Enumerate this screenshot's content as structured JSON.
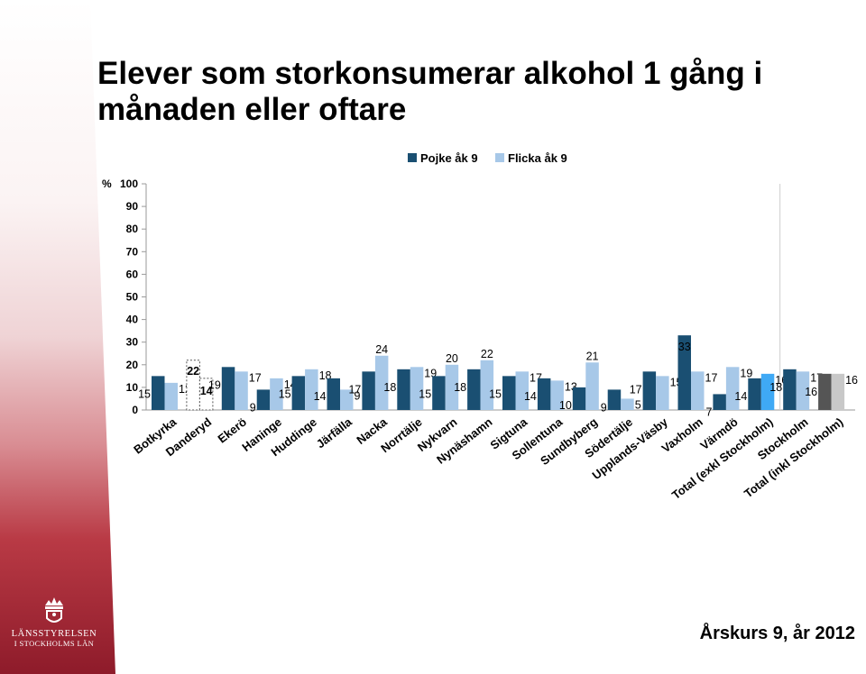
{
  "slide": {
    "title": "Elever som storkonsumerar alkohol 1 gång i månaden eller oftare",
    "footer": "Årskurs 9, år 2012",
    "logo_line1": "LÄNSSTYRELSEN",
    "logo_line2": "I STOCKHOLMS LÄN"
  },
  "colors": {
    "pojke": "#1a4f72",
    "flicka": "#a7c8e8",
    "total_excl_flicka": "#3fa9f5",
    "total_incl_pojke": "#555555",
    "total_incl_flicka": "#c8c8c8"
  },
  "chart_data": {
    "type": "bar",
    "yunit": "%",
    "ylim": [
      0,
      100
    ],
    "yticks": [
      0,
      10,
      20,
      30,
      40,
      50,
      60,
      70,
      80,
      90,
      100
    ],
    "grid": false,
    "legend": "top",
    "categories": [
      "Botkyrka",
      "Danderyd",
      "Ekerö",
      "Haninge",
      "Huddinge",
      "Järfälla",
      "Nacka",
      "Norrtälje",
      "Nykvarn",
      "Nynäshamn",
      "Sigtuna",
      "Sollentuna",
      "Sundbyberg",
      "Södertälje",
      "Upplands-Väsby",
      "Vaxholm",
      "Värmdö",
      "Total (exkl Stockholm)",
      "Stockholm",
      "Total (inkl Stockholm)"
    ],
    "series": [
      {
        "name": "Pojke åk 9",
        "values": [
          15,
          22,
          19,
          9,
          15,
          14,
          17,
          18,
          15,
          18,
          15,
          14,
          10,
          9,
          17,
          33,
          7,
          14,
          18,
          16
        ]
      },
      {
        "name": "Flicka åk 9",
        "values": [
          12,
          14,
          17,
          14,
          18,
          9,
          24,
          19,
          20,
          22,
          17,
          13,
          21,
          5,
          15,
          17,
          19,
          16,
          17,
          16
        ]
      }
    ],
    "labels": {
      "pojke": [
        "15",
        "22",
        "19",
        "9",
        "15",
        "14",
        "17",
        "18",
        "15",
        "18",
        "15",
        "14",
        "10",
        "9",
        "17",
        "33",
        "7",
        "14",
        "18",
        "16"
      ],
      "flicka": [
        "12",
        "14",
        "17",
        "14",
        "18",
        "9",
        "24",
        "19",
        "20",
        "22",
        "17",
        "13",
        "21",
        "5",
        "15",
        "17",
        "19",
        "16",
        "17",
        "16"
      ]
    },
    "dashed_category": "Danderyd"
  }
}
